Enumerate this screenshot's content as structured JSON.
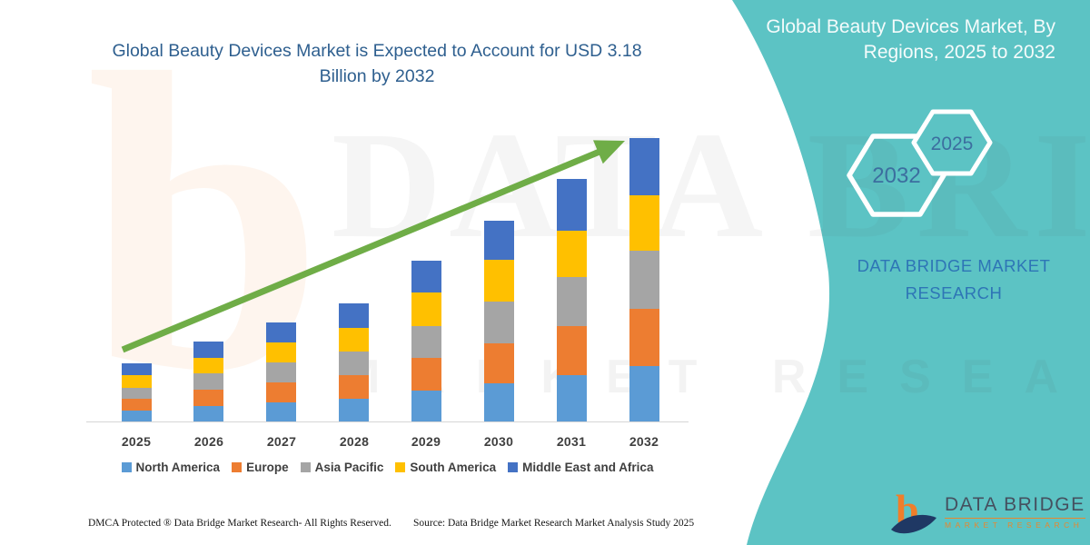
{
  "chart": {
    "title": "Global Beauty Devices Market is Expected to Account for USD 3.18 Billion by 2032"
  },
  "chart_data": {
    "type": "bar",
    "stacked": true,
    "unit": "USD Billion",
    "title": "Global Beauty Devices Market is Expected to Account for USD 3.18 Billion by 2032",
    "categories": [
      "2025",
      "2026",
      "2027",
      "2028",
      "2029",
      "2030",
      "2031",
      "2032"
    ],
    "series": [
      {
        "name": "North America",
        "color": "#5B9BD5",
        "values": [
          0.13,
          0.18,
          0.23,
          0.27,
          0.36,
          0.44,
          0.53,
          0.63
        ]
      },
      {
        "name": "Europe",
        "color": "#ED7D31",
        "values": [
          0.13,
          0.18,
          0.23,
          0.27,
          0.37,
          0.45,
          0.55,
          0.64
        ]
      },
      {
        "name": "Asia Pacific",
        "color": "#A5A5A5",
        "values": [
          0.12,
          0.18,
          0.23,
          0.27,
          0.36,
          0.47,
          0.55,
          0.65
        ]
      },
      {
        "name": "South America",
        "color": "#FFC000",
        "values": [
          0.14,
          0.17,
          0.23,
          0.27,
          0.38,
          0.47,
          0.52,
          0.62
        ]
      },
      {
        "name": "Middle East and Africa",
        "color": "#4472C4",
        "values": [
          0.13,
          0.18,
          0.22,
          0.28,
          0.36,
          0.44,
          0.58,
          0.64
        ]
      }
    ],
    "totals_by_year": [
      0.65,
      0.89,
      1.14,
      1.36,
      1.83,
      2.27,
      2.73,
      3.18
    ],
    "ylim": [
      0,
      3.3
    ],
    "grid": false,
    "legend_position": "bottom",
    "annotations": [
      "upward trend arrow from 2025 to 2032"
    ]
  },
  "side_panel": {
    "title": "Global Beauty Devices Market, By Regions, 2025 to 2032",
    "hexagons": [
      "2032",
      "2025"
    ],
    "brand_text": "DATA BRIDGE MARKET RESEARCH"
  },
  "logo": {
    "glyph": "b",
    "brand": "DATA BRIDGE",
    "sub": "MARKET RESEARCH"
  },
  "watermark": {
    "glyph": "b",
    "line1": "DATA BRIDGE",
    "line2": "MARKET RESEARCH"
  },
  "footer": {
    "left": "DMCA Protected ® Data Bridge Market Research-  All Rights Reserved.",
    "source": "Source: Data Bridge Market Research  Market Analysis Study 2025"
  },
  "colors": {
    "teal_panel": "#5CC3C4",
    "title_text": "#2E5F8F",
    "panel_title_text": "#F4FBFB",
    "brand_blue": "#2E75B6",
    "hexagon_text": "#3C6E9F",
    "trend_arrow": "#6FAD47",
    "axis_line": "#D6D6D6",
    "legend_text": "#3F3F3F",
    "logo_orange": "#F07E2A",
    "logo_navy": "#1F3864"
  }
}
